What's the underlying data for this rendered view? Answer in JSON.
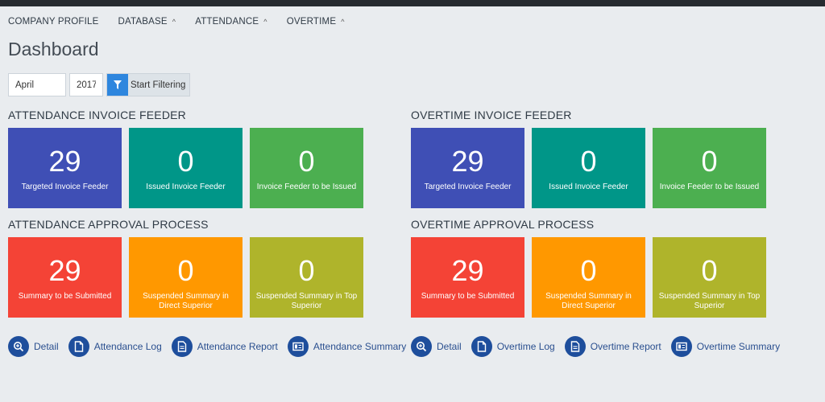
{
  "nav": {
    "items": [
      {
        "label": "COMPANY PROFILE",
        "caret": false
      },
      {
        "label": "DATABASE",
        "caret": true
      },
      {
        "label": "ATTENDANCE",
        "caret": true
      },
      {
        "label": "OVERTIME",
        "caret": true
      }
    ]
  },
  "page_title": "Dashboard",
  "filter": {
    "month": "April",
    "year": "2017",
    "button_label": "Start Filtering",
    "button_icon": "filter-icon"
  },
  "sections": {
    "attendance_invoice": {
      "title": "ATTENDANCE INVOICE FEEDER",
      "tiles": [
        {
          "value": "29",
          "label": "Targeted Invoice Feeder",
          "color": "#3f4fb5"
        },
        {
          "value": "0",
          "label": "Issued Invoice Feeder",
          "color": "#009688"
        },
        {
          "value": "0",
          "label": "Invoice Feeder to be Issued",
          "color": "#4caf50"
        }
      ]
    },
    "overtime_invoice": {
      "title": "OVERTIME INVOICE FEEDER",
      "tiles": [
        {
          "value": "29",
          "label": "Targeted Invoice Feeder",
          "color": "#3f4fb5"
        },
        {
          "value": "0",
          "label": "Issued Invoice Feeder",
          "color": "#009688"
        },
        {
          "value": "0",
          "label": "Invoice Feeder to be Issued",
          "color": "#4caf50"
        }
      ]
    },
    "attendance_approval": {
      "title": "ATTENDANCE APPROVAL PROCESS",
      "tiles": [
        {
          "value": "29",
          "label": "Summary to be Submitted",
          "color": "#f44336"
        },
        {
          "value": "0",
          "label": "Suspended Summary in Direct Superior",
          "color": "#ff9800"
        },
        {
          "value": "0",
          "label": "Suspended Summary in Top Superior",
          "color": "#afb42b"
        }
      ]
    },
    "overtime_approval": {
      "title": "OVERTIME APPROVAL PROCESS",
      "tiles": [
        {
          "value": "29",
          "label": "Summary to be Submitted",
          "color": "#f44336"
        },
        {
          "value": "0",
          "label": "Suspended Summary in Direct Superior",
          "color": "#ff9800"
        },
        {
          "value": "0",
          "label": "Suspended Summary in Top Superior",
          "color": "#afb42b"
        }
      ]
    }
  },
  "attendance_links": [
    {
      "label": "Detail",
      "icon": "zoom-icon"
    },
    {
      "label": "Attendance Log",
      "icon": "document-icon"
    },
    {
      "label": "Attendance Report",
      "icon": "report-icon"
    },
    {
      "label": "Attendance Summary",
      "icon": "summary-icon"
    }
  ],
  "overtime_links": [
    {
      "label": "Detail",
      "icon": "zoom-icon"
    },
    {
      "label": "Overtime Log",
      "icon": "document-icon"
    },
    {
      "label": "Overtime Report",
      "icon": "report-icon"
    },
    {
      "label": "Overtime Summary",
      "icon": "summary-icon"
    }
  ],
  "colors": {
    "link_icon_bg": "#1e4e9c",
    "filter_icon_bg": "#2e86de"
  }
}
